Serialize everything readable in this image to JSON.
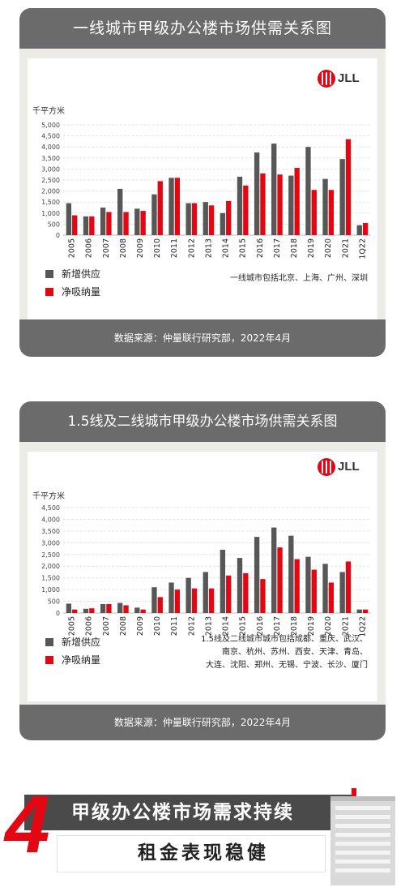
{
  "colors": {
    "supply": "#575757",
    "absorption": "#e30613",
    "frame": "#6b6b6b",
    "card_bg": "#ecebe6",
    "brand": "#e30613"
  },
  "brand": {
    "logo_text": "JLL"
  },
  "card1": {
    "title": "一线城市甲级办公楼市场供需关系图",
    "ylabel": "千平方米",
    "legend": [
      "新增供应",
      "净吸纳量"
    ],
    "note": "一线城市包括北京、上海、广州、深圳",
    "source": "数据来源：仲量联行研究部，2022年4月"
  },
  "card2": {
    "title": "1.5线及二线城市甲级办公楼市场供需关系图",
    "ylabel": "千平方米",
    "legend": [
      "新增供应",
      "净吸纳量"
    ],
    "note_lines": [
      "1.5线及二线城市城市包括成都、重庆、武汉、",
      "南京、杭州、苏州、西安、天津、青岛、",
      "大连、沈阳、郑州、无锡、宁波、长沙、厦门"
    ],
    "source": "数据来源：仲量联行研究部，2022年4月"
  },
  "banner": {
    "number": "4",
    "line1": "甲级办公楼市场需求持续",
    "line2": "租金表现稳健"
  },
  "chart_data": [
    {
      "type": "bar",
      "title": "一线城市甲级办公楼市场供需关系图",
      "ylabel": "千平方米",
      "categories": [
        "2005",
        "2006",
        "2007",
        "2008",
        "2009",
        "2010",
        "2011",
        "2012",
        "2013",
        "2014",
        "2015",
        "2016",
        "2017",
        "2018",
        "2019",
        "2020",
        "2021",
        "1Q22"
      ],
      "yticks": [
        "0",
        "500",
        "1,000",
        "1,500",
        "2,000",
        "2,500",
        "3,000",
        "3,500",
        "4,000",
        "4,500",
        "5,000"
      ],
      "ylim": [
        0,
        5000
      ],
      "series": [
        {
          "name": "新增供应",
          "values": [
            1450,
            850,
            1250,
            2100,
            1200,
            1850,
            2600,
            1450,
            1500,
            1000,
            2650,
            3750,
            4150,
            2700,
            4000,
            2550,
            3450,
            450
          ]
        },
        {
          "name": "净吸纳量",
          "values": [
            900,
            850,
            1050,
            1050,
            1100,
            2450,
            2600,
            1450,
            1350,
            1550,
            2250,
            2800,
            2750,
            3050,
            2050,
            2050,
            4350,
            550
          ]
        }
      ],
      "grid": true,
      "legend_position": "bottom-left"
    },
    {
      "type": "bar",
      "title": "1.5线及二线城市甲级办公楼市场供需关系图",
      "ylabel": "千平方米",
      "categories": [
        "2005",
        "2006",
        "2007",
        "2008",
        "2009",
        "2010",
        "2011",
        "2012",
        "2013",
        "2014",
        "2015",
        "2016",
        "2017",
        "2018",
        "2019",
        "2020",
        "2021",
        "1Q22"
      ],
      "yticks": [
        "0",
        "500",
        "1,000",
        "1,500",
        "2,000",
        "2,500",
        "3,000",
        "3,500",
        "4,000",
        "4,500"
      ],
      "ylim": [
        0,
        4500
      ],
      "series": [
        {
          "name": "新增供应",
          "values": [
            400,
            180,
            380,
            430,
            230,
            1100,
            1300,
            1500,
            1750,
            2700,
            2350,
            3250,
            3650,
            3300,
            2400,
            2100,
            1750,
            150
          ]
        },
        {
          "name": "净吸纳量",
          "values": [
            150,
            200,
            380,
            330,
            150,
            680,
            1000,
            1050,
            1050,
            1600,
            1700,
            1450,
            2800,
            2300,
            1850,
            1300,
            2200,
            150
          ]
        }
      ],
      "grid": true,
      "legend_position": "bottom-left"
    }
  ]
}
